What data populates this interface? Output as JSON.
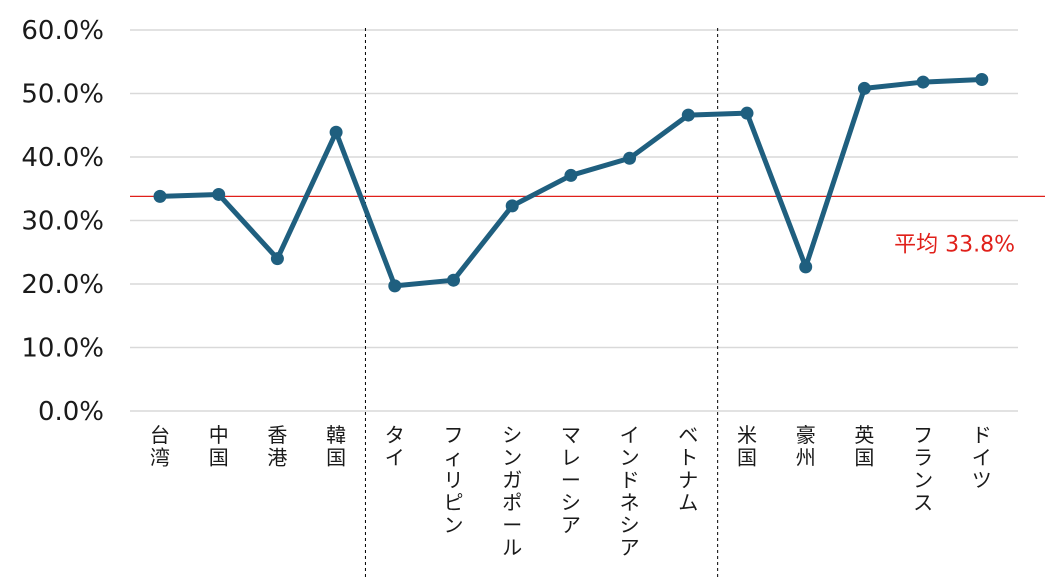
{
  "chart_data": {
    "type": "line",
    "categories": [
      "台湾",
      "中国",
      "香港",
      "韓国",
      "タイ",
      "フィリピン",
      "シンガポール",
      "マレーシア",
      "インドネシア",
      "ベトナム",
      "米国",
      "豪州",
      "英国",
      "フランス",
      "ドイツ"
    ],
    "values": [
      33.8,
      34.1,
      24.0,
      43.9,
      19.7,
      20.6,
      32.3,
      37.1,
      39.8,
      46.6,
      46.9,
      22.7,
      50.8,
      51.8,
      52.2
    ],
    "y_ticks": [
      "0.0%",
      "10.0%",
      "20.0%",
      "30.0%",
      "40.0%",
      "50.0%",
      "60.0%"
    ],
    "ylim": [
      0,
      60
    ],
    "grid": true,
    "group_dividers_after": [
      3,
      9
    ],
    "average": {
      "value": 33.8,
      "label": "平均 33.8%",
      "color": "#e0201a"
    },
    "series_color": "#1f5f7f"
  }
}
